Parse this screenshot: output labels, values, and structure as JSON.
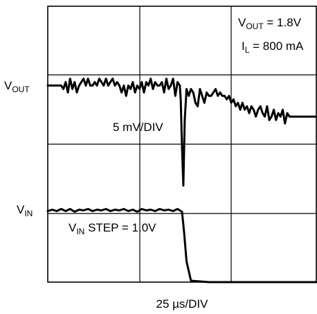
{
  "chart_data": {
    "type": "line",
    "title": "",
    "xlabel": "25 µs/DIV",
    "ylabel": "",
    "grid": true,
    "annotations": {
      "vout_eq": "V",
      "vout_eq_sub": "OUT",
      "vout_eq_value": " = 1.8V",
      "il_eq": "I",
      "il_eq_sub": "L",
      "il_eq_value": " = 800 mA",
      "vout_scale": "5 mV/DIV",
      "vin_step": "V",
      "vin_step_sub": "IN",
      "vin_step_value": " STEP = 1.0V"
    },
    "channel_labels": {
      "vout": "V",
      "vout_sub": "OUT",
      "vin": "V",
      "vin_sub": "IN"
    },
    "series": [
      {
        "name": "VOUT",
        "x": [
          0,
          0.1,
          0.2,
          0.3,
          0.35,
          0.4,
          0.45,
          0.5,
          0.55,
          0.6,
          0.65,
          0.7,
          0.75,
          0.8,
          0.85,
          0.9,
          0.95,
          1.0,
          1.05,
          1.1,
          1.15,
          1.2,
          1.25,
          1.3,
          1.35,
          1.4,
          1.45,
          1.5,
          1.55,
          1.6,
          1.65,
          1.7,
          1.75,
          1.8,
          1.85,
          1.9,
          1.95,
          2.0,
          2.05,
          2.1,
          2.15,
          2.2,
          2.25,
          2.3,
          2.35,
          2.4,
          2.45,
          2.5,
          2.55,
          2.6,
          2.65,
          2.7,
          2.75,
          2.8,
          2.85,
          2.9,
          2.95,
          2.97,
          3.0,
          3.03,
          3.06,
          3.1,
          3.15,
          3.2,
          3.25,
          3.3,
          3.35,
          3.4,
          3.45,
          3.5,
          3.55,
          3.6,
          3.65,
          3.7,
          3.75,
          3.8,
          3.85,
          3.9,
          3.95,
          4.0,
          4.05,
          4.1,
          4.15,
          4.2,
          4.25,
          4.3,
          4.35,
          4.4,
          4.45,
          4.5,
          4.55,
          4.6,
          4.65,
          4.7,
          4.75,
          4.8,
          4.85,
          4.9,
          4.95,
          5.0,
          5.05,
          5.1,
          5.15,
          5.2,
          5.25,
          5.3,
          5.35,
          5.4,
          5.5,
          5.6,
          5.8,
          6.0
        ],
        "y": [
          2.85,
          2.85,
          2.85,
          2.85,
          2.8,
          2.9,
          2.75,
          2.95,
          2.8,
          2.9,
          2.75,
          2.85,
          2.9,
          2.95,
          2.85,
          2.95,
          2.85,
          2.85,
          2.9,
          2.85,
          2.95,
          2.9,
          2.85,
          2.95,
          2.85,
          2.9,
          2.95,
          2.85,
          2.9,
          2.85,
          2.75,
          2.85,
          2.7,
          2.85,
          2.8,
          2.9,
          2.75,
          2.85,
          2.8,
          2.9,
          2.75,
          2.9,
          2.85,
          2.95,
          2.8,
          2.9,
          2.85,
          2.85,
          2.9,
          2.75,
          2.95,
          2.8,
          2.85,
          2.95,
          2.7,
          2.9,
          2.85,
          2.65,
          1.95,
          1.4,
          2.35,
          2.8,
          2.7,
          2.8,
          2.75,
          2.6,
          2.55,
          2.8,
          2.7,
          2.6,
          2.75,
          2.7,
          2.7,
          2.75,
          2.8,
          2.7,
          2.75,
          2.7,
          2.7,
          2.65,
          2.7,
          2.6,
          2.65,
          2.55,
          2.6,
          2.5,
          2.6,
          2.5,
          2.55,
          2.45,
          2.55,
          2.5,
          2.4,
          2.5,
          2.55,
          2.45,
          2.4,
          2.55,
          2.35,
          2.4,
          2.5,
          2.35,
          2.45,
          2.4,
          2.5,
          2.3,
          2.45,
          2.4,
          2.4,
          2.4,
          2.4,
          2.4
        ]
      },
      {
        "name": "VIN",
        "x": [
          0,
          0.1,
          0.2,
          0.3,
          0.4,
          0.5,
          0.6,
          0.7,
          0.8,
          0.9,
          1.0,
          1.1,
          1.2,
          1.3,
          1.4,
          1.5,
          1.6,
          1.7,
          1.8,
          1.9,
          2.0,
          2.1,
          2.2,
          2.3,
          2.4,
          2.5,
          2.6,
          2.7,
          2.8,
          2.9,
          3.0,
          3.05,
          3.1,
          3.2,
          3.4,
          3.6,
          4.0,
          5.0,
          6.0
        ],
        "y": [
          1.03,
          1.05,
          1.03,
          1.06,
          1.03,
          1.06,
          1.02,
          1.05,
          1.04,
          1.06,
          1.03,
          1.05,
          1.04,
          1.06,
          1.03,
          1.05,
          1.04,
          1.06,
          1.03,
          1.05,
          1.02,
          1.06,
          1.04,
          1.05,
          1.03,
          1.06,
          1.04,
          1.05,
          1.03,
          1.06,
          1.02,
          0.7,
          0.3,
          0.02,
          0.01,
          0.0,
          0.0,
          0.0,
          0.0
        ]
      }
    ]
  }
}
